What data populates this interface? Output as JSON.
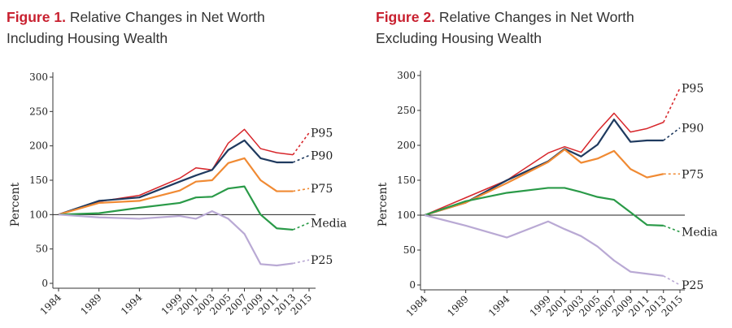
{
  "chart_data": [
    {
      "type": "line",
      "figure_label": "Figure 1.",
      "title": "Relative Changes in Net Worth",
      "subtitle": "Including Housing Wealth",
      "ylabel": "Percent",
      "ylim": [
        0,
        300
      ],
      "yticks": [
        0,
        50,
        100,
        150,
        200,
        250,
        300
      ],
      "x": [
        1984,
        1989,
        1994,
        1999,
        2001,
        2003,
        2005,
        2007,
        2009,
        2011,
        2013,
        2015
      ],
      "reference_line": 100,
      "dashed_segment": [
        2013,
        2015
      ],
      "series": [
        {
          "name": "P95",
          "color": "#d7262b",
          "values": [
            100,
            119,
            128,
            153,
            168,
            165,
            204,
            224,
            196,
            190,
            187,
            219
          ]
        },
        {
          "name": "P90",
          "color": "#1f3a5f",
          "values": [
            100,
            120,
            125,
            148,
            157,
            165,
            194,
            208,
            182,
            176,
            176,
            186
          ]
        },
        {
          "name": "P75",
          "color": "#f08a33",
          "values": [
            100,
            117,
            120,
            135,
            148,
            150,
            175,
            182,
            150,
            134,
            134,
            138
          ]
        },
        {
          "name": "Media",
          "color": "#2a9a48",
          "values": [
            100,
            102,
            110,
            117,
            125,
            126,
            138,
            141,
            100,
            80,
            78,
            88
          ]
        },
        {
          "name": "P25",
          "color": "#b9a9d4",
          "values": [
            100,
            96,
            94,
            98,
            94,
            105,
            94,
            72,
            28,
            26,
            29,
            34
          ]
        }
      ]
    },
    {
      "type": "line",
      "figure_label": "Figure 2.",
      "title": "Relative Changes in Net Worth",
      "subtitle": "Excluding Housing Wealth",
      "ylabel": "Percent",
      "ylim": [
        0,
        300
      ],
      "yticks": [
        0,
        50,
        100,
        150,
        200,
        250,
        300
      ],
      "x": [
        1984,
        1989,
        1994,
        1999,
        2001,
        2003,
        2005,
        2007,
        2009,
        2011,
        2013,
        2015
      ],
      "reference_line": 100,
      "dashed_segment": [
        2013,
        2015
      ],
      "series": [
        {
          "name": "P95",
          "color": "#d7262b",
          "values": [
            100,
            125,
            150,
            189,
            198,
            190,
            220,
            246,
            219,
            224,
            233,
            282
          ]
        },
        {
          "name": "P90",
          "color": "#1f3a5f",
          "values": [
            100,
            118,
            150,
            177,
            195,
            184,
            201,
            237,
            205,
            207,
            207,
            225
          ]
        },
        {
          "name": "P75",
          "color": "#f08a33",
          "values": [
            100,
            118,
            146,
            176,
            194,
            175,
            181,
            192,
            166,
            154,
            159,
            159
          ]
        },
        {
          "name": "Media",
          "color": "#2a9a48",
          "values": [
            100,
            120,
            132,
            139,
            139,
            133,
            126,
            122,
            104,
            86,
            85,
            76
          ]
        },
        {
          "name": "P25",
          "color": "#b9a9d4",
          "values": [
            100,
            85,
            68,
            91,
            80,
            70,
            55,
            35,
            19,
            16,
            13,
            0
          ]
        }
      ]
    }
  ]
}
